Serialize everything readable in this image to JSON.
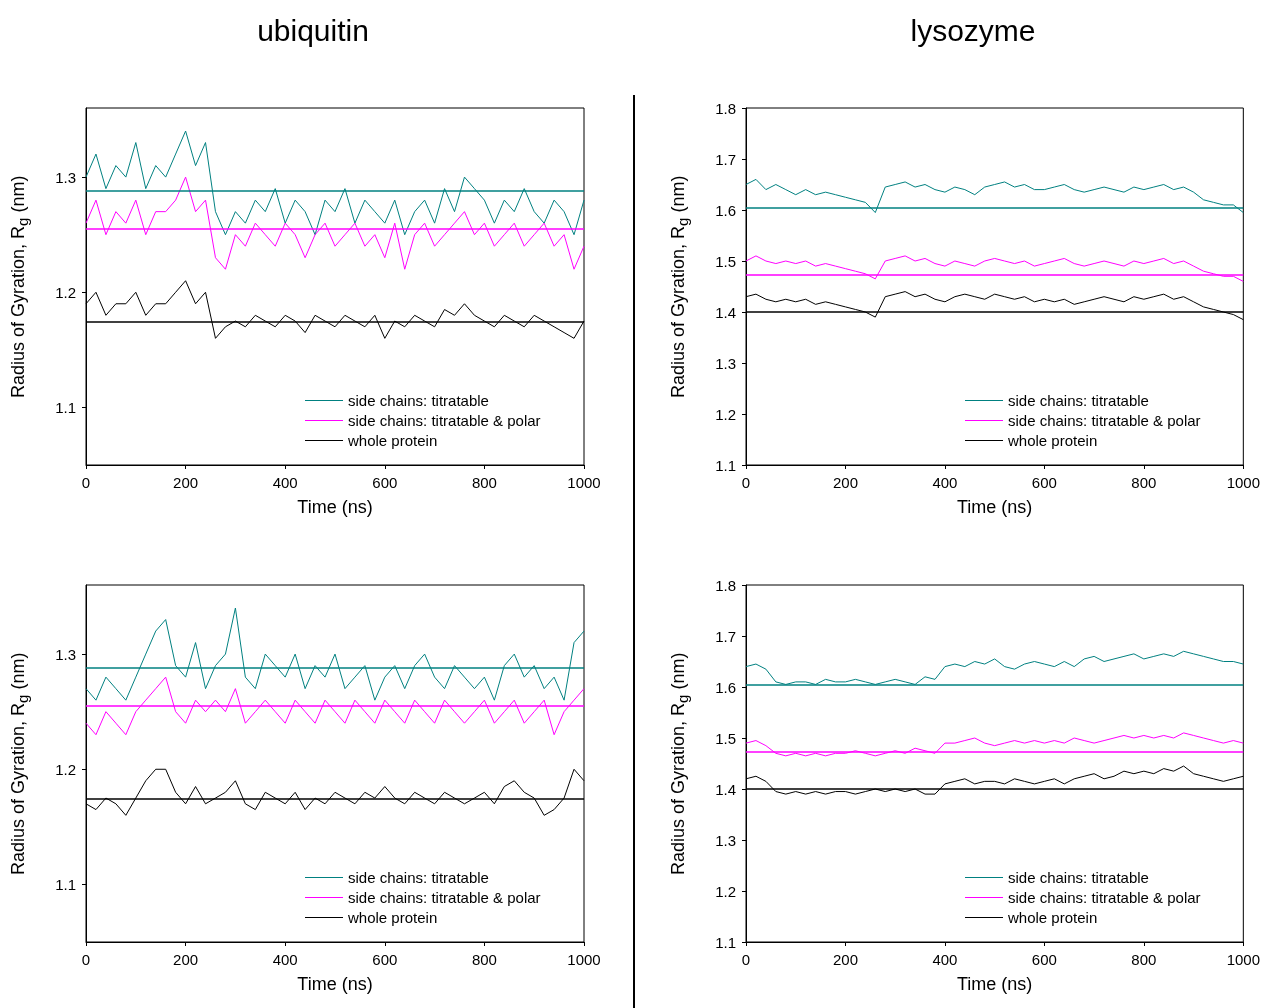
{
  "chart_data": [
    {
      "type": "line",
      "title": "ubiquitin",
      "xlabel": "Time (ns)",
      "ylabel": "Radius of Gyration, R$_{g}$ (nm)",
      "xlim": [
        0,
        1000
      ],
      "xticks": [
        0,
        200,
        400,
        600,
        800,
        1000
      ],
      "ylim": [
        1.05,
        1.36
      ],
      "yticks": [
        1.1,
        1.2,
        1.3
      ],
      "legend": "bottom right",
      "x": [
        0,
        20,
        40,
        60,
        80,
        100,
        120,
        140,
        160,
        180,
        200,
        220,
        240,
        260,
        280,
        300,
        320,
        340,
        360,
        380,
        400,
        420,
        440,
        460,
        480,
        500,
        520,
        540,
        560,
        580,
        600,
        620,
        640,
        660,
        680,
        700,
        720,
        740,
        760,
        780,
        800,
        820,
        840,
        860,
        880,
        900,
        920,
        940,
        960,
        980,
        1000
      ],
      "series": [
        {
          "name": "side chains: titratable",
          "color": "#008080",
          "values": [
            1.3,
            1.32,
            1.29,
            1.31,
            1.3,
            1.33,
            1.29,
            1.31,
            1.3,
            1.32,
            1.34,
            1.31,
            1.33,
            1.27,
            1.25,
            1.27,
            1.26,
            1.28,
            1.27,
            1.29,
            1.26,
            1.28,
            1.27,
            1.25,
            1.28,
            1.27,
            1.29,
            1.26,
            1.28,
            1.27,
            1.26,
            1.28,
            1.25,
            1.27,
            1.28,
            1.26,
            1.29,
            1.27,
            1.3,
            1.29,
            1.28,
            1.26,
            1.28,
            1.27,
            1.29,
            1.27,
            1.26,
            1.28,
            1.27,
            1.25,
            1.28
          ]
        },
        {
          "name": "side chains: titratable & polar",
          "color": "#ff00ff",
          "values": [
            1.26,
            1.28,
            1.25,
            1.27,
            1.26,
            1.28,
            1.25,
            1.27,
            1.27,
            1.28,
            1.3,
            1.27,
            1.28,
            1.23,
            1.22,
            1.25,
            1.24,
            1.26,
            1.25,
            1.24,
            1.26,
            1.25,
            1.23,
            1.25,
            1.26,
            1.24,
            1.25,
            1.26,
            1.24,
            1.25,
            1.23,
            1.26,
            1.22,
            1.25,
            1.26,
            1.24,
            1.25,
            1.26,
            1.27,
            1.25,
            1.26,
            1.24,
            1.25,
            1.26,
            1.24,
            1.25,
            1.26,
            1.24,
            1.25,
            1.22,
            1.24
          ]
        },
        {
          "name": "whole protein",
          "color": "#000000",
          "values": [
            1.19,
            1.2,
            1.18,
            1.19,
            1.19,
            1.2,
            1.18,
            1.19,
            1.19,
            1.2,
            1.21,
            1.19,
            1.2,
            1.16,
            1.17,
            1.175,
            1.17,
            1.18,
            1.175,
            1.17,
            1.18,
            1.175,
            1.165,
            1.18,
            1.175,
            1.17,
            1.18,
            1.175,
            1.17,
            1.18,
            1.16,
            1.175,
            1.17,
            1.18,
            1.175,
            1.17,
            1.185,
            1.18,
            1.19,
            1.18,
            1.175,
            1.17,
            1.18,
            1.175,
            1.17,
            1.18,
            1.175,
            1.17,
            1.165,
            1.16,
            1.175
          ]
        }
      ],
      "ref_lines": [
        {
          "axis": "y",
          "value": 1.288,
          "color": "#008080"
        },
        {
          "axis": "y",
          "value": 1.255,
          "color": "#ff00ff"
        },
        {
          "axis": "y",
          "value": 1.174,
          "color": "#000000"
        }
      ]
    },
    {
      "type": "line",
      "title": "lysozyme",
      "xlabel": "Time (ns)",
      "ylabel": "Radius of Gyration, R$_{g}$ (nm)",
      "xlim": [
        0,
        1000
      ],
      "xticks": [
        0,
        200,
        400,
        600,
        800,
        1000
      ],
      "ylim": [
        1.1,
        1.8
      ],
      "yticks": [
        1.1,
        1.2,
        1.3,
        1.4,
        1.5,
        1.6,
        1.7,
        1.8
      ],
      "legend": "bottom right",
      "x": [
        0,
        20,
        40,
        60,
        80,
        100,
        120,
        140,
        160,
        180,
        200,
        220,
        240,
        260,
        280,
        300,
        320,
        340,
        360,
        380,
        400,
        420,
        440,
        460,
        480,
        500,
        520,
        540,
        560,
        580,
        600,
        620,
        640,
        660,
        680,
        700,
        720,
        740,
        760,
        780,
        800,
        820,
        840,
        860,
        880,
        900,
        920,
        940,
        960,
        980,
        1000
      ],
      "series": [
        {
          "name": "side chains: titratable",
          "color": "#008080",
          "values": [
            1.65,
            1.66,
            1.64,
            1.65,
            1.64,
            1.63,
            1.64,
            1.63,
            1.635,
            1.63,
            1.625,
            1.62,
            1.615,
            1.595,
            1.645,
            1.65,
            1.655,
            1.645,
            1.65,
            1.64,
            1.635,
            1.645,
            1.64,
            1.63,
            1.645,
            1.65,
            1.655,
            1.645,
            1.65,
            1.64,
            1.64,
            1.645,
            1.65,
            1.64,
            1.635,
            1.64,
            1.645,
            1.64,
            1.635,
            1.645,
            1.64,
            1.645,
            1.65,
            1.64,
            1.645,
            1.635,
            1.62,
            1.615,
            1.61,
            1.61,
            1.595
          ]
        },
        {
          "name": "side chains: titratable & polar",
          "color": "#ff00ff",
          "values": [
            1.5,
            1.51,
            1.5,
            1.495,
            1.5,
            1.495,
            1.5,
            1.49,
            1.495,
            1.49,
            1.485,
            1.48,
            1.475,
            1.465,
            1.5,
            1.505,
            1.51,
            1.5,
            1.505,
            1.495,
            1.49,
            1.5,
            1.495,
            1.49,
            1.5,
            1.505,
            1.5,
            1.495,
            1.5,
            1.49,
            1.495,
            1.5,
            1.505,
            1.495,
            1.49,
            1.495,
            1.5,
            1.495,
            1.49,
            1.5,
            1.495,
            1.5,
            1.505,
            1.495,
            1.5,
            1.49,
            1.48,
            1.475,
            1.47,
            1.47,
            1.46
          ]
        },
        {
          "name": "whole protein",
          "color": "#000000",
          "values": [
            1.43,
            1.435,
            1.425,
            1.42,
            1.425,
            1.42,
            1.425,
            1.415,
            1.42,
            1.415,
            1.41,
            1.405,
            1.4,
            1.39,
            1.43,
            1.435,
            1.44,
            1.43,
            1.435,
            1.425,
            1.42,
            1.43,
            1.435,
            1.43,
            1.425,
            1.435,
            1.43,
            1.425,
            1.43,
            1.42,
            1.425,
            1.42,
            1.425,
            1.415,
            1.42,
            1.425,
            1.43,
            1.425,
            1.42,
            1.43,
            1.425,
            1.43,
            1.435,
            1.425,
            1.43,
            1.42,
            1.41,
            1.405,
            1.4,
            1.395,
            1.385
          ]
        }
      ],
      "ref_lines": [
        {
          "axis": "y",
          "value": 1.605,
          "color": "#008080"
        },
        {
          "axis": "y",
          "value": 1.474,
          "color": "#ff00ff"
        },
        {
          "axis": "y",
          "value": 1.4,
          "color": "#000000"
        }
      ]
    },
    {
      "type": "line",
      "xlabel": "Time (ns)",
      "ylabel": "Radius of Gyration, R$_{g}$ (nm)",
      "xlim": [
        0,
        1000
      ],
      "xticks": [
        0,
        200,
        400,
        600,
        800,
        1000
      ],
      "ylim": [
        1.05,
        1.36
      ],
      "yticks": [
        1.1,
        1.2,
        1.3
      ],
      "legend": "bottom right",
      "x": [
        0,
        20,
        40,
        60,
        80,
        100,
        120,
        140,
        160,
        180,
        200,
        220,
        240,
        260,
        280,
        300,
        320,
        340,
        360,
        380,
        400,
        420,
        440,
        460,
        480,
        500,
        520,
        540,
        560,
        580,
        600,
        620,
        640,
        660,
        680,
        700,
        720,
        740,
        760,
        780,
        800,
        820,
        840,
        860,
        880,
        900,
        920,
        940,
        960,
        980,
        1000
      ],
      "series": [
        {
          "name": "side chains: titratable",
          "color": "#008080",
          "values": [
            1.27,
            1.26,
            1.28,
            1.27,
            1.26,
            1.28,
            1.3,
            1.32,
            1.33,
            1.29,
            1.28,
            1.31,
            1.27,
            1.29,
            1.3,
            1.34,
            1.28,
            1.27,
            1.3,
            1.29,
            1.28,
            1.3,
            1.27,
            1.29,
            1.28,
            1.3,
            1.27,
            1.28,
            1.29,
            1.26,
            1.28,
            1.29,
            1.27,
            1.29,
            1.3,
            1.28,
            1.27,
            1.29,
            1.28,
            1.27,
            1.28,
            1.26,
            1.29,
            1.3,
            1.28,
            1.29,
            1.27,
            1.28,
            1.26,
            1.31,
            1.32
          ]
        },
        {
          "name": "side chains: titratable & polar",
          "color": "#ff00ff",
          "values": [
            1.24,
            1.23,
            1.25,
            1.24,
            1.23,
            1.25,
            1.26,
            1.27,
            1.28,
            1.25,
            1.24,
            1.26,
            1.25,
            1.26,
            1.25,
            1.27,
            1.24,
            1.25,
            1.26,
            1.25,
            1.24,
            1.26,
            1.25,
            1.24,
            1.26,
            1.25,
            1.24,
            1.26,
            1.25,
            1.24,
            1.26,
            1.25,
            1.24,
            1.26,
            1.25,
            1.24,
            1.26,
            1.25,
            1.24,
            1.25,
            1.26,
            1.24,
            1.25,
            1.26,
            1.24,
            1.25,
            1.26,
            1.23,
            1.25,
            1.26,
            1.27
          ]
        },
        {
          "name": "whole protein",
          "color": "#000000",
          "values": [
            1.17,
            1.165,
            1.175,
            1.17,
            1.16,
            1.175,
            1.19,
            1.2,
            1.2,
            1.18,
            1.17,
            1.185,
            1.17,
            1.175,
            1.18,
            1.19,
            1.17,
            1.165,
            1.18,
            1.175,
            1.17,
            1.18,
            1.165,
            1.175,
            1.17,
            1.18,
            1.175,
            1.17,
            1.18,
            1.175,
            1.185,
            1.175,
            1.17,
            1.18,
            1.175,
            1.17,
            1.18,
            1.175,
            1.17,
            1.175,
            1.18,
            1.17,
            1.185,
            1.19,
            1.18,
            1.175,
            1.16,
            1.165,
            1.175,
            1.2,
            1.19
          ]
        }
      ],
      "ref_lines": [
        {
          "axis": "y",
          "value": 1.288,
          "color": "#008080"
        },
        {
          "axis": "y",
          "value": 1.255,
          "color": "#ff00ff"
        },
        {
          "axis": "y",
          "value": 1.174,
          "color": "#000000"
        }
      ]
    },
    {
      "type": "line",
      "xlabel": "Time (ns)",
      "ylabel": "Radius of Gyration, R$_{g}$ (nm)",
      "xlim": [
        0,
        1000
      ],
      "xticks": [
        0,
        200,
        400,
        600,
        800,
        1000
      ],
      "ylim": [
        1.1,
        1.8
      ],
      "yticks": [
        1.1,
        1.2,
        1.3,
        1.4,
        1.5,
        1.6,
        1.7,
        1.8
      ],
      "legend": "bottom right",
      "x": [
        0,
        20,
        40,
        60,
        80,
        100,
        120,
        140,
        160,
        180,
        200,
        220,
        240,
        260,
        280,
        300,
        320,
        340,
        360,
        380,
        400,
        420,
        440,
        460,
        480,
        500,
        520,
        540,
        560,
        580,
        600,
        620,
        640,
        660,
        680,
        700,
        720,
        740,
        760,
        780,
        800,
        820,
        840,
        860,
        880,
        900,
        920,
        940,
        960,
        980,
        1000
      ],
      "series": [
        {
          "name": "side chains: titratable",
          "color": "#008080",
          "values": [
            1.64,
            1.645,
            1.635,
            1.61,
            1.605,
            1.61,
            1.61,
            1.605,
            1.615,
            1.61,
            1.61,
            1.615,
            1.61,
            1.605,
            1.61,
            1.615,
            1.61,
            1.605,
            1.62,
            1.615,
            1.64,
            1.645,
            1.64,
            1.65,
            1.645,
            1.655,
            1.64,
            1.635,
            1.645,
            1.65,
            1.645,
            1.64,
            1.65,
            1.64,
            1.655,
            1.66,
            1.65,
            1.655,
            1.66,
            1.665,
            1.655,
            1.66,
            1.665,
            1.66,
            1.67,
            1.665,
            1.66,
            1.655,
            1.65,
            1.65,
            1.645
          ]
        },
        {
          "name": "side chains: titratable & polar",
          "color": "#ff00ff",
          "values": [
            1.49,
            1.495,
            1.485,
            1.47,
            1.465,
            1.47,
            1.465,
            1.47,
            1.465,
            1.47,
            1.47,
            1.475,
            1.47,
            1.465,
            1.47,
            1.475,
            1.47,
            1.48,
            1.475,
            1.47,
            1.49,
            1.49,
            1.495,
            1.5,
            1.49,
            1.485,
            1.49,
            1.495,
            1.49,
            1.495,
            1.49,
            1.495,
            1.49,
            1.5,
            1.495,
            1.49,
            1.495,
            1.5,
            1.505,
            1.5,
            1.505,
            1.5,
            1.505,
            1.5,
            1.51,
            1.505,
            1.5,
            1.495,
            1.49,
            1.495,
            1.49
          ]
        },
        {
          "name": "whole protein",
          "color": "#000000",
          "values": [
            1.42,
            1.425,
            1.415,
            1.395,
            1.39,
            1.395,
            1.39,
            1.395,
            1.39,
            1.395,
            1.395,
            1.39,
            1.395,
            1.4,
            1.395,
            1.4,
            1.395,
            1.4,
            1.39,
            1.39,
            1.41,
            1.415,
            1.42,
            1.41,
            1.415,
            1.415,
            1.41,
            1.42,
            1.415,
            1.41,
            1.415,
            1.42,
            1.41,
            1.42,
            1.425,
            1.43,
            1.42,
            1.425,
            1.435,
            1.43,
            1.435,
            1.43,
            1.44,
            1.435,
            1.445,
            1.43,
            1.425,
            1.42,
            1.415,
            1.42,
            1.425
          ]
        }
      ],
      "ref_lines": [
        {
          "axis": "y",
          "value": 1.605,
          "color": "#008080"
        },
        {
          "axis": "y",
          "value": 1.474,
          "color": "#ff00ff"
        },
        {
          "axis": "y",
          "value": 1.4,
          "color": "#000000"
        }
      ]
    }
  ]
}
